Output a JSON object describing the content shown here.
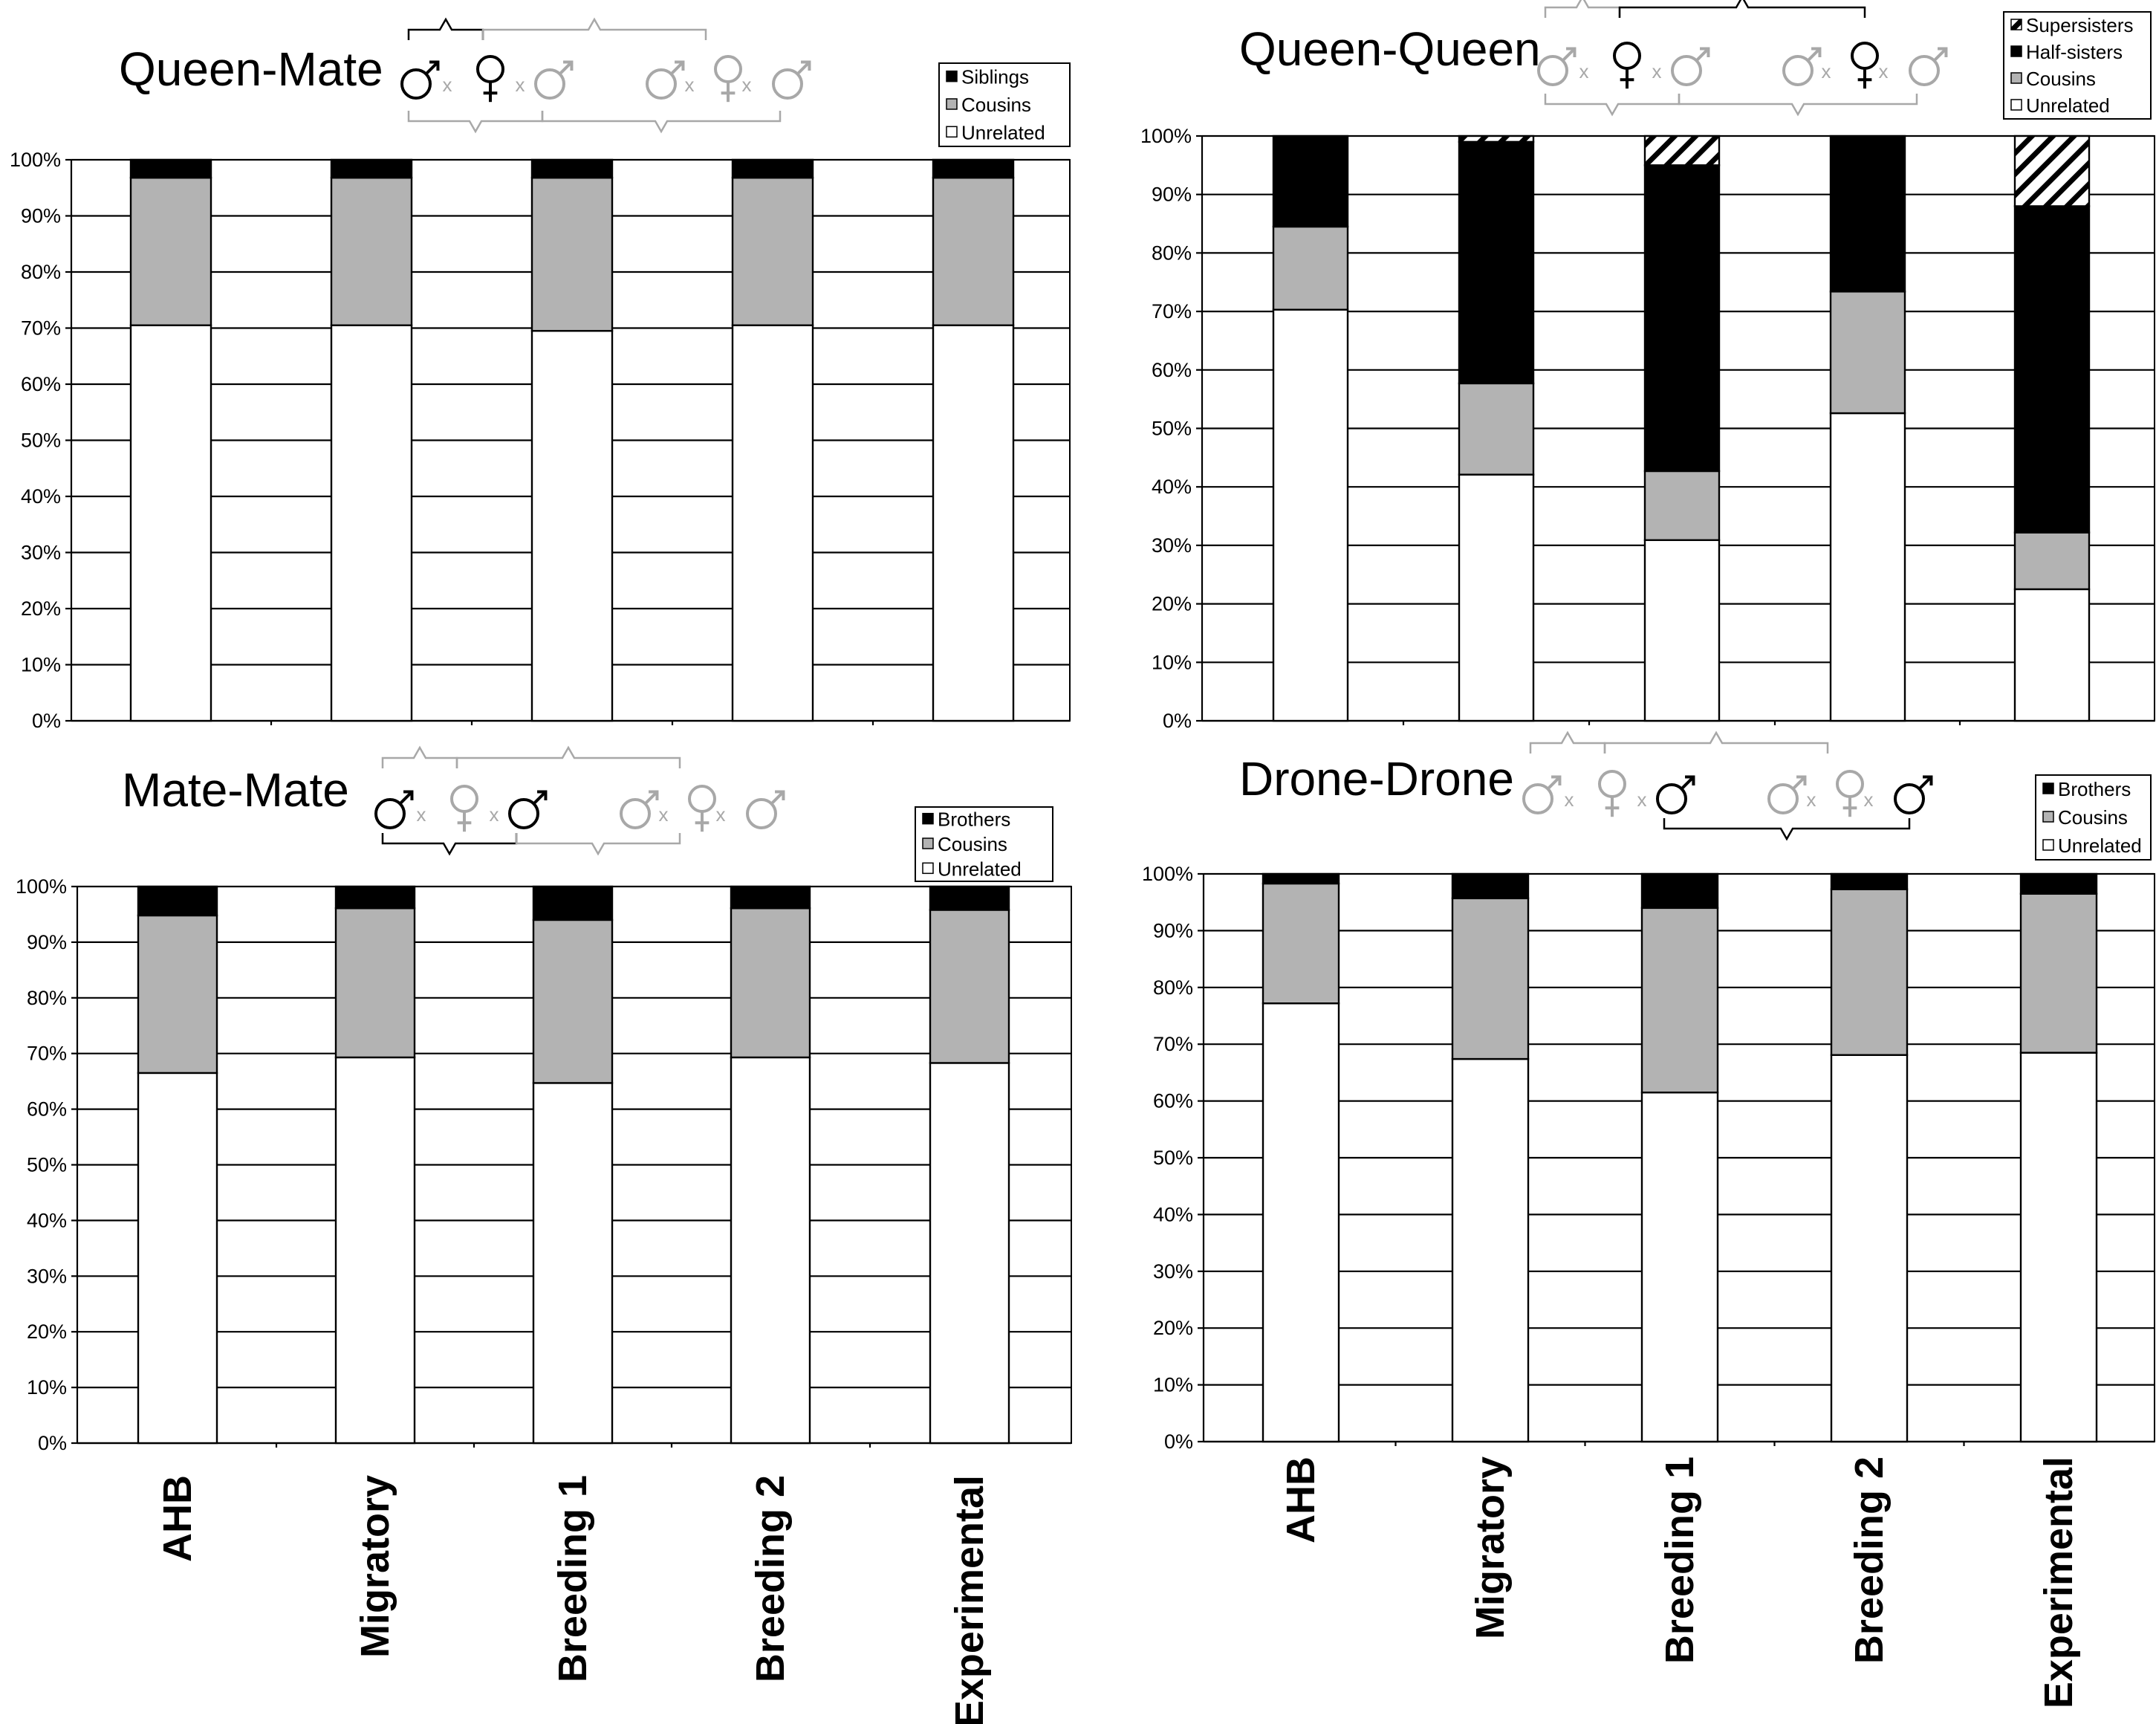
{
  "colors": {
    "unrelated": "#ffffff",
    "cousins": "#b3b3b3",
    "related": "#000000",
    "grey_glyph": "#a8a8a8",
    "black": "#000000"
  },
  "icons": {
    "male": "male-symbol-icon",
    "female": "female-symbol-icon",
    "cross": "cross-mark-icon",
    "brace": "brace-icon"
  },
  "pedigree": {
    "cross_mark": "x"
  },
  "x_categories": [
    "AHB",
    "Migratory",
    "Breeding 1",
    "Breeding 2",
    "Experimental"
  ],
  "chart_data": [
    {
      "type": "bar",
      "stacked": true,
      "title": "Queen-Mate",
      "categories": [
        "AHB",
        "Migratory",
        "Breeding 1",
        "Breeding 2",
        "Experimental"
      ],
      "ylim": [
        0,
        100
      ],
      "yticks": [
        "0%",
        "10%",
        "20%",
        "30%",
        "40%",
        "50%",
        "60%",
        "70%",
        "80%",
        "90%",
        "100%"
      ],
      "grid": true,
      "legend_position": "top-right",
      "legend": [
        "Siblings",
        "Cousins",
        "Unrelated"
      ],
      "series": [
        {
          "name": "Unrelated",
          "style": "white",
          "values": [
            70.5,
            70.5,
            69.5,
            70.5,
            70.5
          ]
        },
        {
          "name": "Cousins",
          "style": "grey",
          "values": [
            26.3,
            26.3,
            27.3,
            26.3,
            26.3
          ]
        },
        {
          "name": "Siblings",
          "style": "black",
          "values": [
            3.2,
            3.2,
            3.2,
            3.2,
            3.2
          ]
        }
      ]
    },
    {
      "type": "bar",
      "stacked": true,
      "title": "Queen-Queen",
      "categories": [
        "AHB",
        "Migratory",
        "Breeding 1",
        "Breeding 2",
        "Experimental"
      ],
      "ylim": [
        0,
        100
      ],
      "yticks": [
        "0%",
        "10%",
        "20%",
        "30%",
        "40%",
        "50%",
        "60%",
        "70%",
        "80%",
        "90%",
        "100%"
      ],
      "grid": true,
      "legend_position": "top-right",
      "legend": [
        "Supersisters",
        "Half-sisters",
        "Cousins",
        "Unrelated"
      ],
      "series": [
        {
          "name": "Unrelated",
          "style": "white",
          "values": [
            70.3,
            42.1,
            30.9,
            52.6,
            22.5
          ]
        },
        {
          "name": "Cousins",
          "style": "grey",
          "values": [
            14.2,
            15.6,
            11.8,
            20.8,
            9.7
          ]
        },
        {
          "name": "Half-sisters",
          "style": "black",
          "values": [
            15.5,
            41.3,
            52.3,
            26.6,
            55.8
          ]
        },
        {
          "name": "Supersisters",
          "style": "hatch",
          "values": [
            0,
            1.0,
            5.0,
            0,
            12.0
          ]
        }
      ]
    },
    {
      "type": "bar",
      "stacked": true,
      "title": "Mate-Mate",
      "categories": [
        "AHB",
        "Migratory",
        "Breeding 1",
        "Breeding 2",
        "Experimental"
      ],
      "ylim": [
        0,
        100
      ],
      "yticks": [
        "0%",
        "10%",
        "20%",
        "30%",
        "40%",
        "50%",
        "60%",
        "70%",
        "80%",
        "90%",
        "100%"
      ],
      "grid": true,
      "legend_position": "top-right",
      "legend": [
        "Brothers",
        "Cousins",
        "Unrelated"
      ],
      "series": [
        {
          "name": "Unrelated",
          "style": "white",
          "values": [
            66.5,
            69.3,
            64.7,
            69.3,
            68.3
          ]
        },
        {
          "name": "Cousins",
          "style": "grey",
          "values": [
            28.3,
            26.8,
            29.3,
            26.8,
            27.5
          ]
        },
        {
          "name": "Brothers",
          "style": "black",
          "values": [
            5.2,
            3.9,
            6.0,
            3.9,
            4.2
          ]
        }
      ]
    },
    {
      "type": "bar",
      "stacked": true,
      "title": "Drone-Drone",
      "categories": [
        "AHB",
        "Migratory",
        "Breeding 1",
        "Breeding 2",
        "Experimental"
      ],
      "ylim": [
        0,
        100
      ],
      "yticks": [
        "0%",
        "10%",
        "20%",
        "30%",
        "40%",
        "50%",
        "60%",
        "70%",
        "80%",
        "90%",
        "100%"
      ],
      "grid": true,
      "legend_position": "top-right",
      "legend": [
        "Brothers",
        "Cousins",
        "Unrelated"
      ],
      "series": [
        {
          "name": "Unrelated",
          "style": "white",
          "values": [
            77.2,
            67.4,
            61.5,
            68.1,
            68.5
          ]
        },
        {
          "name": "Cousins",
          "style": "grey",
          "values": [
            21.1,
            28.3,
            32.5,
            29.2,
            28.0
          ]
        },
        {
          "name": "Brothers",
          "style": "black",
          "values": [
            1.7,
            4.3,
            6.0,
            2.7,
            3.5
          ]
        }
      ]
    }
  ]
}
